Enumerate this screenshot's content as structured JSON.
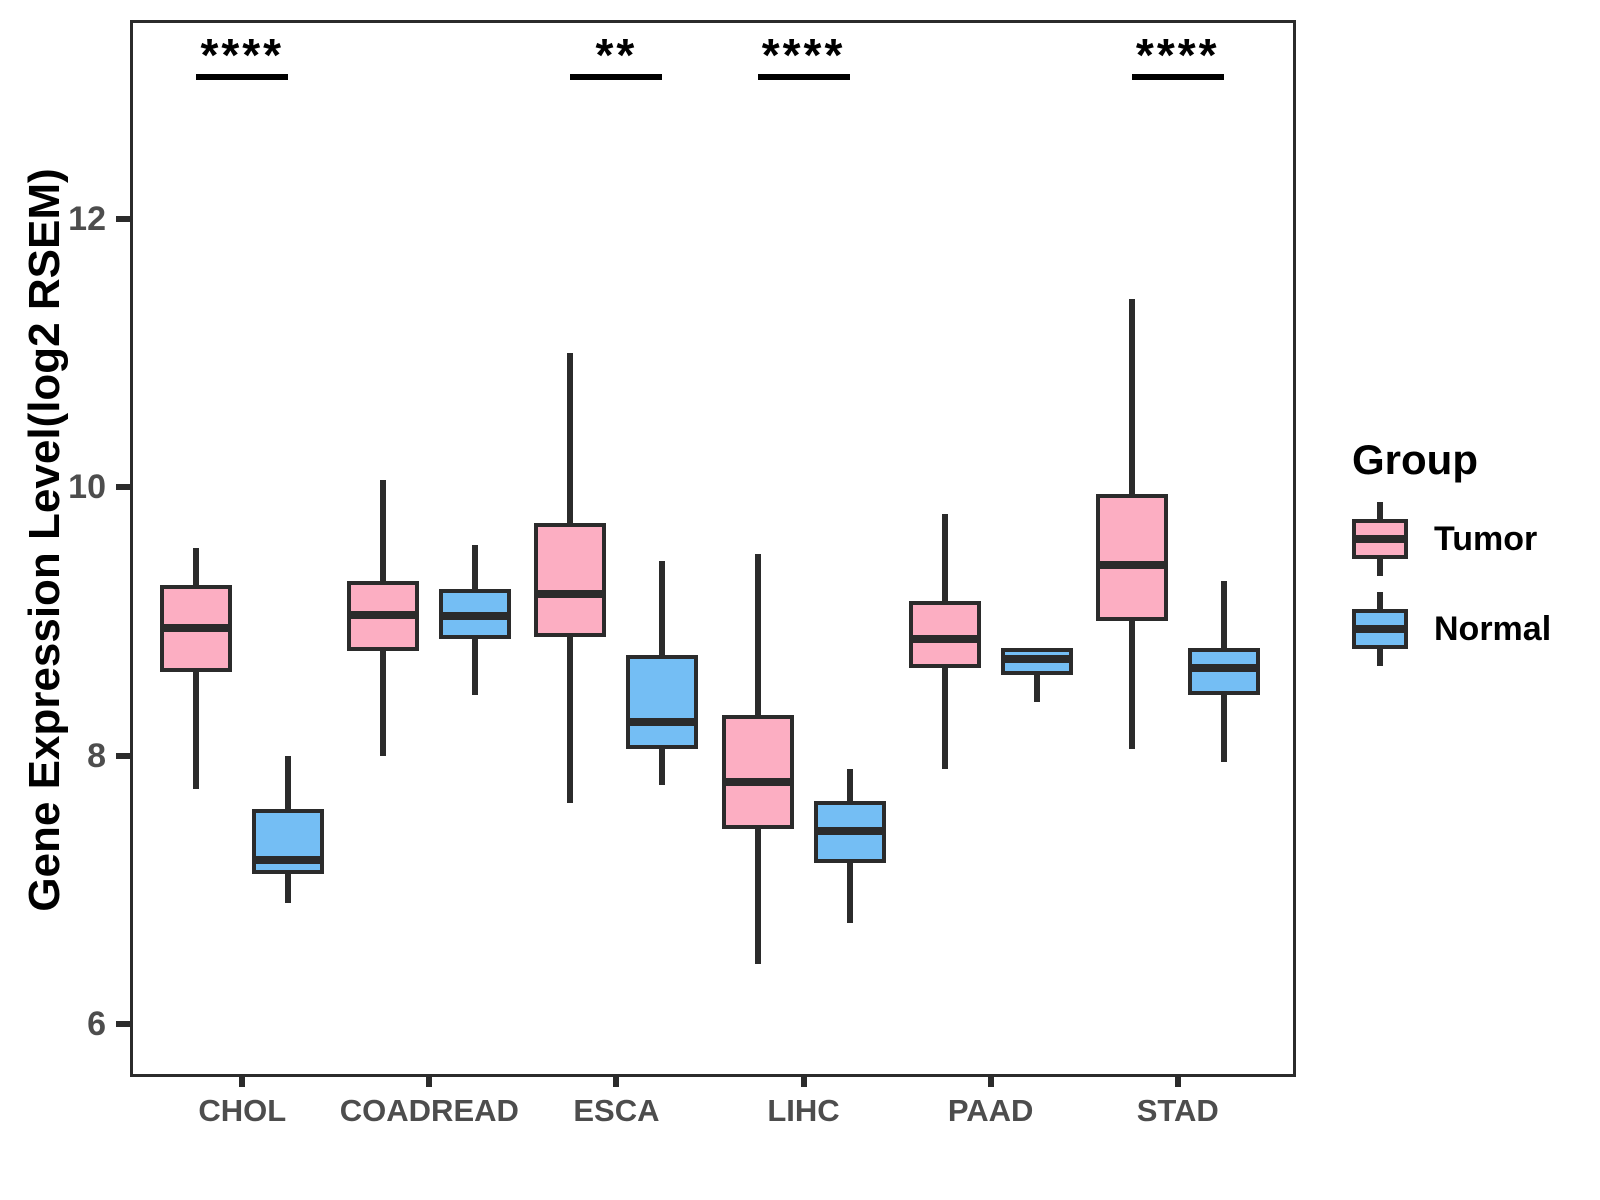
{
  "chart_data": {
    "type": "boxplot",
    "title": "",
    "xlabel": "",
    "ylabel": "Gene Expression Level(log2 RSEM)",
    "ylim": [
      5.65,
      13.48
    ],
    "yticks": [
      6,
      8,
      10,
      12
    ],
    "grid": false,
    "legend_position": "right",
    "categories": [
      "CHOL",
      "COADREAD",
      "ESCA",
      "LIHC",
      "PAAD",
      "STAD"
    ],
    "series": [
      {
        "name": "Tumor",
        "color": "#FCAEC2",
        "boxes": [
          {
            "whisker_low": 7.75,
            "q1": 8.62,
            "median": 8.95,
            "q3": 9.27,
            "whisker_high": 9.55
          },
          {
            "whisker_low": 8.0,
            "q1": 8.78,
            "median": 9.05,
            "q3": 9.3,
            "whisker_high": 10.05
          },
          {
            "whisker_low": 7.65,
            "q1": 8.88,
            "median": 9.2,
            "q3": 9.73,
            "whisker_high": 11.0
          },
          {
            "whisker_low": 6.45,
            "q1": 7.45,
            "median": 7.8,
            "q3": 8.3,
            "whisker_high": 9.5
          },
          {
            "whisker_low": 7.9,
            "q1": 8.65,
            "median": 8.87,
            "q3": 9.15,
            "whisker_high": 9.8
          },
          {
            "whisker_low": 8.05,
            "q1": 9.0,
            "median": 9.42,
            "q3": 9.95,
            "whisker_high": 11.4
          }
        ]
      },
      {
        "name": "Normal",
        "color": "#74BEF4",
        "boxes": [
          {
            "whisker_low": 6.9,
            "q1": 7.12,
            "median": 7.22,
            "q3": 7.6,
            "whisker_high": 8.0
          },
          {
            "whisker_low": 8.45,
            "q1": 8.87,
            "median": 9.04,
            "q3": 9.24,
            "whisker_high": 9.57
          },
          {
            "whisker_low": 7.78,
            "q1": 8.05,
            "median": 8.25,
            "q3": 8.75,
            "whisker_high": 9.45
          },
          {
            "whisker_low": 6.75,
            "q1": 7.2,
            "median": 7.44,
            "q3": 7.66,
            "whisker_high": 7.9
          },
          {
            "whisker_low": 8.4,
            "q1": 8.6,
            "median": 8.72,
            "q3": 8.8,
            "whisker_high": 8.8
          },
          {
            "whisker_low": 7.95,
            "q1": 8.45,
            "median": 8.65,
            "q3": 8.8,
            "whisker_high": 9.3
          }
        ]
      }
    ],
    "significance": [
      {
        "category": "CHOL",
        "label": "****"
      },
      {
        "category": "ESCA",
        "label": "**"
      },
      {
        "category": "LIHC",
        "label": "****"
      },
      {
        "category": "STAD",
        "label": "****"
      }
    ]
  },
  "legend": {
    "title": "Group",
    "entries": [
      {
        "label": "Tumor"
      },
      {
        "label": "Normal"
      }
    ]
  },
  "colors": {
    "tumor": "#FCAEC2",
    "normal": "#74BEF4",
    "box_outline": "#2B2B2B",
    "axis_text": "#4D4D4D",
    "annotation": "#000000"
  }
}
